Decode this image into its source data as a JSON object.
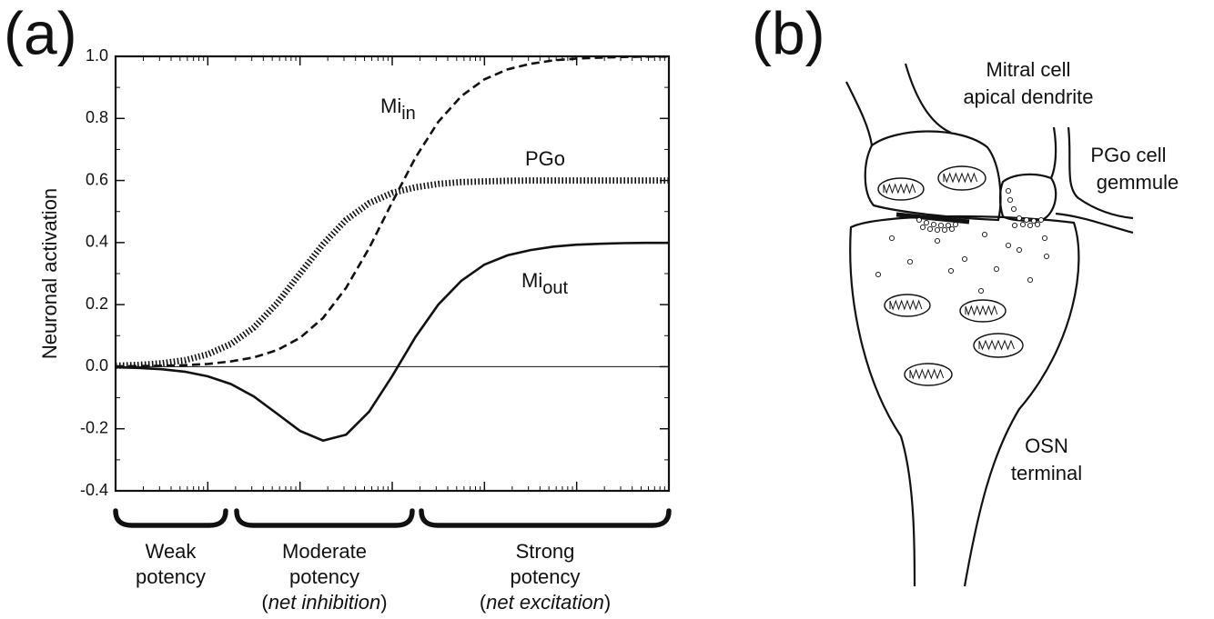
{
  "panel_labels": [
    "(a)",
    "(b)"
  ],
  "chart_data": {
    "type": "line",
    "y_label": "Neuronal activation",
    "log_x": true,
    "xlim": [
      1,
      1000000
    ],
    "xticks": [
      1,
      10,
      100,
      1000,
      10000,
      100000,
      1000000
    ],
    "ylim": [
      -0.4,
      1.0
    ],
    "yticks": [
      {
        "value": 1,
        "label": "1.0"
      },
      0.8,
      0.6,
      0.4,
      0.2,
      {
        "value": 0,
        "label": "0.0"
      },
      -0.2,
      -0.4
    ],
    "zero_line": true,
    "x": [
      1,
      1.78,
      3.16,
      5.62,
      10,
      17.8,
      31.6,
      56.2,
      100,
      178,
      316,
      562,
      1000,
      1780,
      3160,
      5620,
      10000,
      17800,
      31600,
      56200,
      100000,
      178000,
      316000,
      562000,
      1000000
    ],
    "series": [
      {
        "name": "Mi",
        "subscript": "in",
        "color": "#111111",
        "dash": "dashed",
        "values": [
          0.001,
          0.002,
          0.003,
          0.005,
          0.009,
          0.017,
          0.03,
          0.053,
          0.093,
          0.157,
          0.254,
          0.382,
          0.53,
          0.673,
          0.789,
          0.872,
          0.926,
          0.958,
          0.976,
          0.987,
          0.993,
          0.996,
          0.998,
          0.999,
          0.999
        ]
      },
      {
        "name": "PGo",
        "color": "#111111",
        "dash": "dotted",
        "values": [
          0.003,
          0.006,
          0.011,
          0.021,
          0.04,
          0.073,
          0.126,
          0.204,
          0.3,
          0.395,
          0.473,
          0.527,
          0.56,
          0.578,
          0.589,
          0.595,
          0.597,
          0.599,
          0.6,
          0.6,
          0.6,
          0.6,
          0.6,
          0.6,
          0.6
        ]
      },
      {
        "name": "Mi",
        "subscript": "out",
        "color": "#111111",
        "dash": "solid",
        "values": [
          -0.002,
          -0.004,
          -0.008,
          -0.016,
          -0.031,
          -0.056,
          -0.096,
          -0.151,
          -0.207,
          -0.238,
          -0.219,
          -0.145,
          -0.03,
          0.095,
          0.2,
          0.277,
          0.329,
          0.359,
          0.376,
          0.387,
          0.393,
          0.396,
          0.398,
          0.399,
          0.399
        ]
      }
    ],
    "regions": [
      {
        "lines": [
          "Weak",
          "potency"
        ]
      },
      {
        "lines": [
          "Moderate",
          "potency"
        ],
        "note": [
          "(",
          "net inhibition",
          ")"
        ]
      },
      {
        "lines": [
          "Strong",
          "potency"
        ],
        "note": [
          "(",
          "net excitation",
          ")"
        ]
      }
    ]
  },
  "diagram": {
    "labels": [
      [
        "Mitral cell",
        "apical dendrite"
      ],
      [
        "PGo cell",
        "gemmule"
      ],
      [
        "OSN",
        "terminal"
      ]
    ]
  }
}
